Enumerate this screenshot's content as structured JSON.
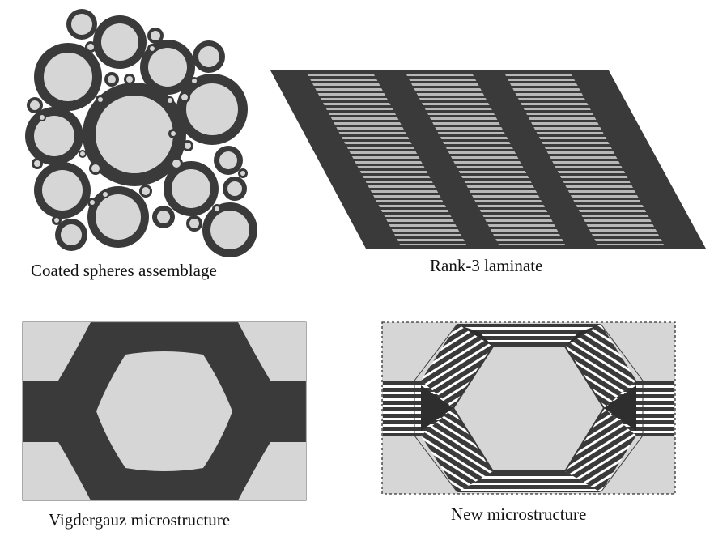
{
  "panels": [
    {
      "id": "coated-spheres",
      "caption": "Coated spheres assemblage"
    },
    {
      "id": "rank3",
      "caption": "Rank-3 laminate"
    },
    {
      "id": "vigdergauz",
      "caption": "Vigdergauz microstructure"
    },
    {
      "id": "new",
      "caption": "New microstructure"
    }
  ],
  "colors": {
    "dark": "#3a3a3a",
    "light": "#d6d6d6",
    "background": "#ffffff"
  }
}
